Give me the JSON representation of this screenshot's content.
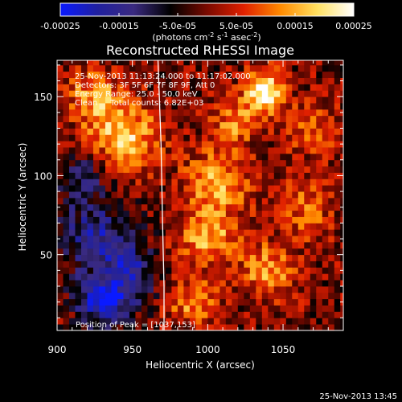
{
  "colors": {
    "background": "#000000",
    "text": "#ffffff",
    "limb_line": "#ffffff"
  },
  "colorbar": {
    "ticks": [
      -0.00025,
      -0.00015,
      -5e-05,
      5e-05,
      0.00015,
      0.00025
    ],
    "tick_labels": [
      "-0.00025",
      "-0.00015",
      "-5.0e-05",
      "5.0e-05",
      "0.00015",
      "0.00025"
    ],
    "unit_label": "(photons cm",
    "unit_sup1": "-2",
    "unit_mid": " s",
    "unit_sup2": "-1",
    "unit_mid2": " asec",
    "unit_sup3": "-2",
    "unit_end": ")",
    "colormap_stops": [
      "#0a1aff",
      "#2020a0",
      "#3a2a80",
      "#000000",
      "#7a0a00",
      "#e02000",
      "#ff8a00",
      "#ffe060",
      "#ffffff"
    ]
  },
  "chart_data": {
    "type": "heatmap",
    "title": "Reconstructed RHESSI Image",
    "xlabel": "Heliocentric X (arcsec)",
    "ylabel": "Heliocentric Y (arcsec)",
    "xlim": [
      900,
      1090
    ],
    "ylim": [
      2,
      173
    ],
    "x_ticks": [
      900,
      950,
      1000,
      1050
    ],
    "y_ticks": [
      50,
      100,
      150
    ],
    "value_range": [
      -0.00025,
      0.00025
    ],
    "legend_lines": [
      "25-Nov-2013 11:13:24.000 to 11:17:02.000",
      "Detectors: 3F 5F 6F 7F 8F 9F, Att 0",
      "Energy Range: 25.0 - 50.0 keV",
      "Clean     Total counts: 6.82E+03"
    ],
    "annotation": "Position of Peak = [1037,153]",
    "peak": {
      "x": 1037,
      "y": 153
    },
    "limb_curve": {
      "x": [
        967,
        969,
        970,
        971,
        971
      ],
      "y": [
        173,
        120,
        70,
        30,
        2
      ]
    },
    "sources": [
      {
        "x": 1037,
        "y": 153,
        "value": 0.00025,
        "sx": 9,
        "sy": 9
      },
      {
        "x": 1018,
        "y": 133,
        "value": 0.00012,
        "sx": 10,
        "sy": 10
      },
      {
        "x": 945,
        "y": 125,
        "value": 0.00018,
        "sx": 16,
        "sy": 14
      },
      {
        "x": 925,
        "y": 150,
        "value": 0.00014,
        "sx": 12,
        "sy": 12
      },
      {
        "x": 1005,
        "y": 95,
        "value": 0.00016,
        "sx": 14,
        "sy": 14
      },
      {
        "x": 1000,
        "y": 60,
        "value": 0.00015,
        "sx": 14,
        "sy": 12
      },
      {
        "x": 1040,
        "y": 40,
        "value": 0.00014,
        "sx": 12,
        "sy": 12
      },
      {
        "x": 1065,
        "y": 80,
        "value": 0.0001,
        "sx": 12,
        "sy": 14
      },
      {
        "x": 990,
        "y": 20,
        "value": 0.00012,
        "sx": 12,
        "sy": 10
      },
      {
        "x": 1070,
        "y": 130,
        "value": 8e-05,
        "sx": 12,
        "sy": 12
      },
      {
        "x": 930,
        "y": 20,
        "value": -0.00022,
        "sx": 12,
        "sy": 10
      },
      {
        "x": 925,
        "y": 60,
        "value": -0.00016,
        "sx": 16,
        "sy": 18
      },
      {
        "x": 950,
        "y": 40,
        "value": -0.00014,
        "sx": 12,
        "sy": 14
      },
      {
        "x": 915,
        "y": 100,
        "value": -0.0001,
        "sx": 12,
        "sy": 12
      }
    ],
    "grid_resolution_arcsec": 4
  },
  "footer": {
    "timestamp": "25-Nov-2013 13:45"
  }
}
